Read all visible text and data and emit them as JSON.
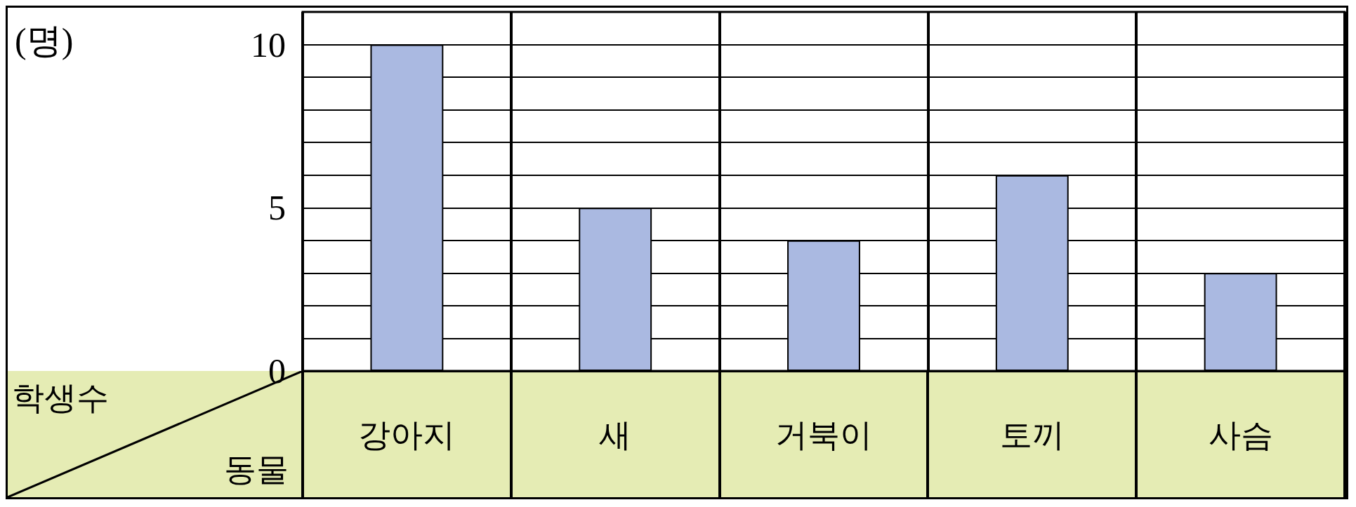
{
  "chart_data": {
    "type": "bar",
    "xlabel": "동물",
    "ylabel": "학생수",
    "annotations": [
      "(명)"
    ],
    "categories": [
      "강아지",
      "새",
      "거북이",
      "토끼",
      "사슴"
    ],
    "values": [
      10,
      5,
      4,
      6,
      3
    ],
    "color": "#aab9e1",
    "ylim": [
      0,
      11
    ],
    "yticks": [
      0,
      {
        "value": 1,
        "label": null
      },
      {
        "value": 2,
        "label": null
      },
      {
        "value": 3,
        "label": null
      },
      {
        "value": 4,
        "label": null
      },
      5,
      {
        "value": 6,
        "label": null
      },
      {
        "value": 7,
        "label": null
      },
      {
        "value": 8,
        "label": null
      },
      {
        "value": 9,
        "label": null
      },
      10
    ],
    "grid": true
  }
}
